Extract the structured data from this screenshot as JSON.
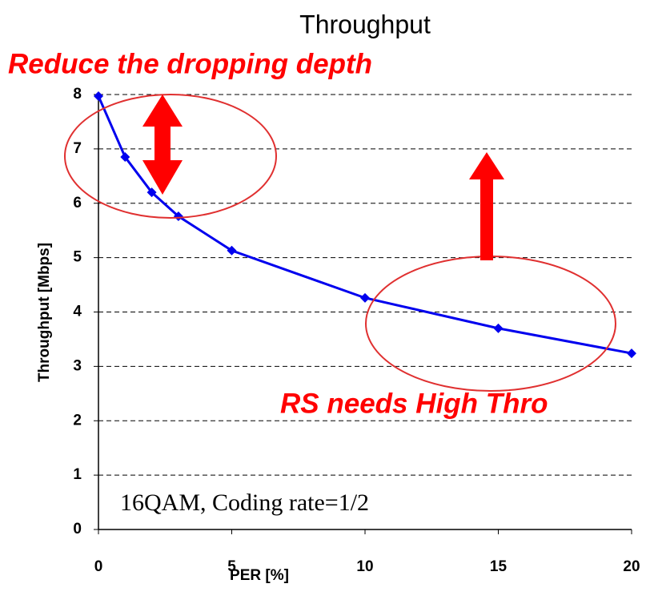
{
  "chart_data": {
    "type": "line",
    "title": "Throughput",
    "xlabel": "PER [%]",
    "ylabel": "Throughput [Mbps]",
    "x": [
      0,
      1,
      2,
      3,
      5,
      10,
      15,
      20
    ],
    "series": [
      {
        "name": "16QAM, Coding rate=1/2",
        "color": "#0000ee",
        "values": [
          7.97,
          6.85,
          6.2,
          5.76,
          5.13,
          4.26,
          3.7,
          3.24
        ]
      }
    ],
    "xlim": [
      0,
      20
    ],
    "xticks": [
      0,
      5,
      10,
      15,
      20
    ],
    "ylim": [
      0,
      8
    ],
    "yticks": [
      0,
      1,
      2,
      3,
      4,
      5,
      6,
      7,
      8
    ],
    "grid": true,
    "annotations": [
      "Reduce the dropping depth",
      "RS needs High Thro"
    ]
  }
}
